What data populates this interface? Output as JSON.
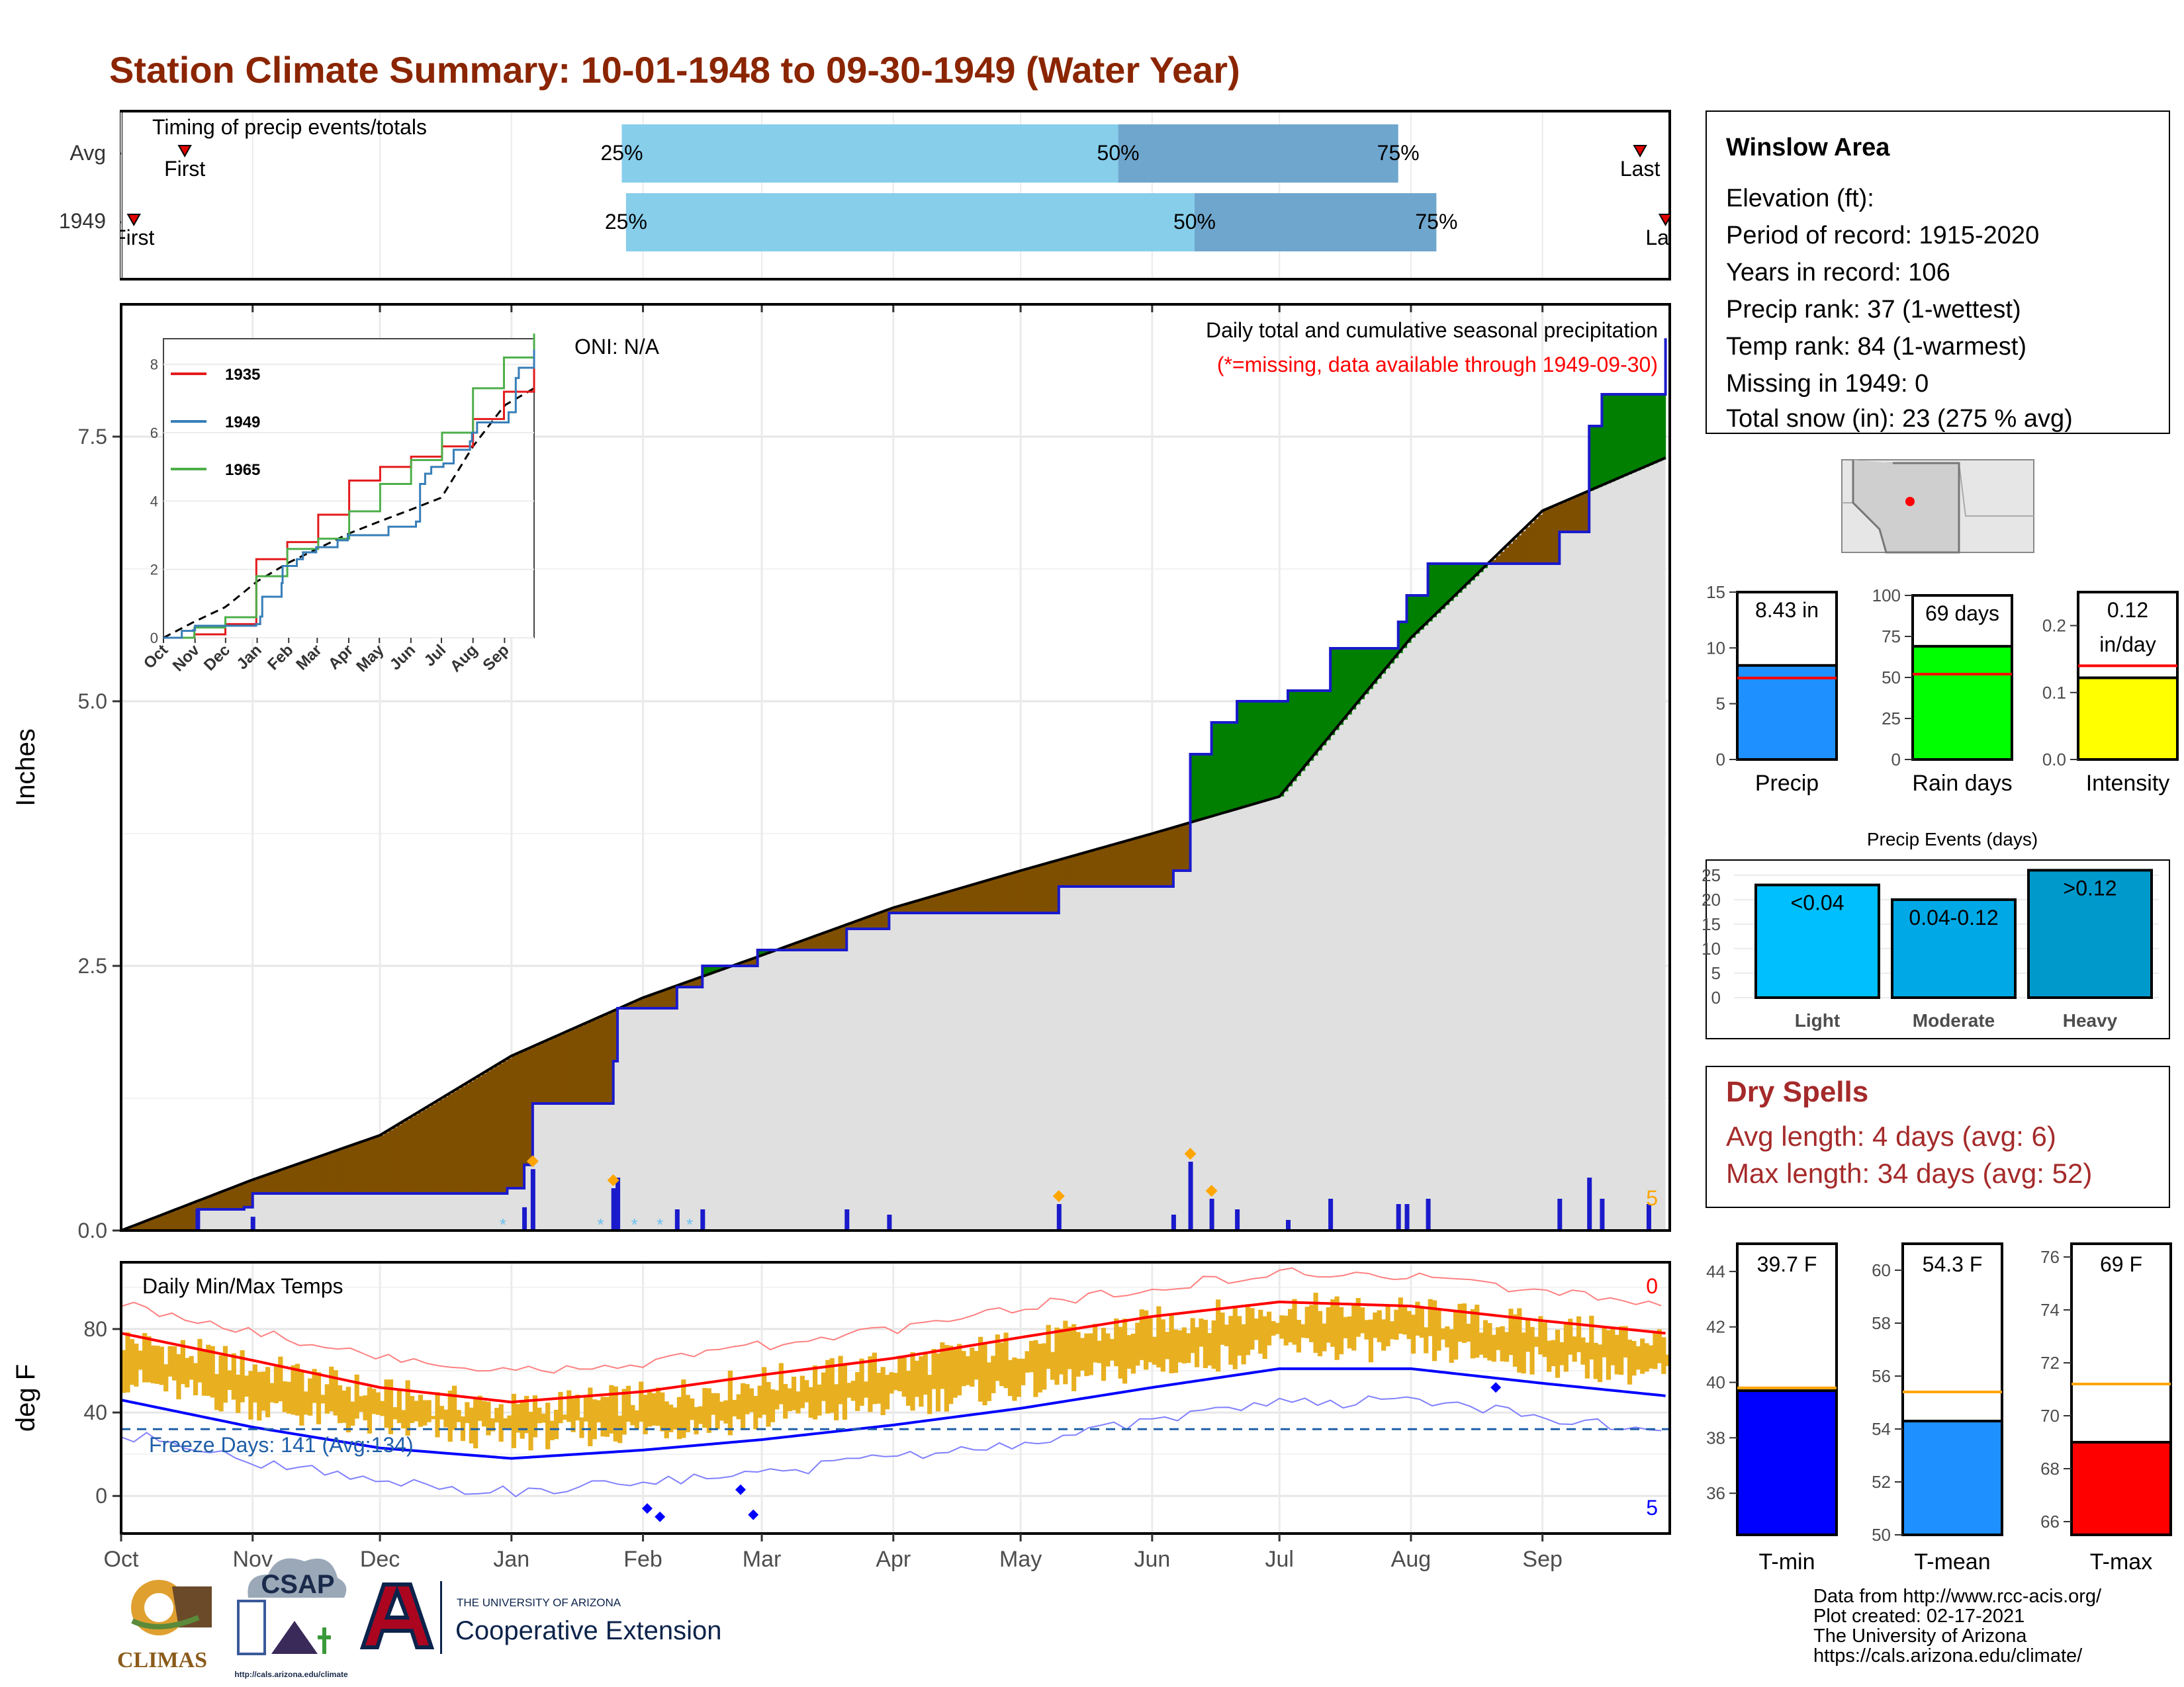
{
  "title": "Station Climate Summary: 10-01-1948 to 09-30-1949 (Water Year)",
  "colors": {
    "title": "#8b2500",
    "below_avg": "#7f4f00",
    "above_avg": "#007f00",
    "precip_blue": "#1a1acc",
    "timing_light": "#87ceeb",
    "timing_dark": "#6fa6cd",
    "tmax": "#ff0000",
    "tmin": "#0000ff",
    "temp_bar": "#e8b020",
    "freeze_line": "#1f5fa8",
    "dry_spell_text": "#a52a2a",
    "gray_fill": "#e0e0e0"
  },
  "timing": {
    "label": "Timing of precip events/totals",
    "rows": [
      {
        "name": "Avg",
        "first_label": "First",
        "last_label": "Last",
        "q25": "25%",
        "q50": "50%",
        "q75": "75%"
      },
      {
        "name": "1949",
        "first_label": "First",
        "last_label": "Last",
        "q25": "25%",
        "q50": "50%",
        "q75": "75%"
      }
    ],
    "avg_days": {
      "first": 15,
      "q25": 118,
      "q50": 235,
      "q75": 301,
      "last": 358
    },
    "yr_days": {
      "first": 3,
      "q25": 119,
      "q50": 253,
      "q75": 310,
      "last": 364
    }
  },
  "precip_panel": {
    "ylabel": "Inches",
    "oni": "ONI: N/A",
    "caption": "Daily total and cumulative seasonal precipitation",
    "missing_note": "(*=missing, data available through 1949-09-30)",
    "snow_count": "5",
    "ylim": [
      0,
      8.75
    ],
    "y_ticks": [
      "0.0",
      "2.5",
      "5.0",
      "7.5"
    ]
  },
  "inset": {
    "y_ticks": [
      "0",
      "2",
      "4",
      "6",
      "8"
    ],
    "x_ticks": [
      "Oct",
      "Nov",
      "Dec",
      "Jan",
      "Feb",
      "Mar",
      "Apr",
      "May",
      "Jun",
      "Jul",
      "Aug",
      "Sep"
    ],
    "legend": [
      {
        "name": "1935",
        "color": "#e41a1c"
      },
      {
        "name": "1949",
        "color": "#377eb8"
      },
      {
        "name": "1965",
        "color": "#4daf4a"
      }
    ]
  },
  "temp_panel": {
    "label": "Daily Min/Max Temps",
    "ylabel": "deg F",
    "freeze": "Freeze Days: 141 (Avg:134)",
    "top_count": "0",
    "bottom_count": "5",
    "y_ticks": [
      "0",
      "40",
      "80"
    ],
    "ylim": [
      -18,
      112
    ]
  },
  "months": [
    "Oct",
    "Nov",
    "Dec",
    "Jan",
    "Feb",
    "Mar",
    "Apr",
    "May",
    "Jun",
    "Jul",
    "Aug",
    "Sep"
  ],
  "info": {
    "station": "Winslow Area",
    "lines": [
      "Elevation (ft):",
      "Period of record: 1915-2020",
      "Years in record: 106",
      "Precip rank: 37 (1-wettest)",
      "Temp rank: 84 (1-warmest)",
      "Missing in 1949: 0",
      "Total snow (in): 23 (275 % avg)"
    ]
  },
  "summary_bars": {
    "precip": {
      "label": "Precip",
      "value_label": "8.43 in",
      "value": 8.43,
      "avg": 7.3,
      "ymax": 15,
      "ticks": [
        "0",
        "5",
        "10",
        "15"
      ],
      "color": "#1e90ff"
    },
    "raindays": {
      "label": "Rain days",
      "value_label": "69 days",
      "value": 69,
      "avg": 52,
      "ymax": 100,
      "ticks": [
        "0",
        "25",
        "50",
        "75",
        "100"
      ],
      "color": "#00ff00"
    },
    "intensity": {
      "label": "Intensity",
      "value_label_1": "0.12",
      "value_label_2": "in/day",
      "value": 0.122,
      "avg": 0.14,
      "ymax": 0.25,
      "ticks": [
        "0.0",
        "0.1",
        "0.2"
      ],
      "color": "#ffff00"
    }
  },
  "events": {
    "title": "Precip Events (days)",
    "ymax": 27,
    "ticks": [
      "0",
      "5",
      "10",
      "15",
      "20",
      "25"
    ],
    "bars": [
      {
        "category": "Light",
        "label": "<0.04",
        "value": 23,
        "color": "#00bfff"
      },
      {
        "category": "Moderate",
        "label": "0.04-0.12",
        "value": 20,
        "color": "#00a9e6"
      },
      {
        "category": "Heavy",
        "label": ">0.12",
        "value": 26,
        "color": "#0099cc"
      }
    ]
  },
  "dry_spells": {
    "title": "Dry Spells",
    "avg_line": "Avg length: 4 days (avg: 6)",
    "max_line": "Max length: 34 days (avg: 52)"
  },
  "temp_bars": {
    "tmin": {
      "label": "T-min",
      "value_label": "39.7 F",
      "value": 39.7,
      "avg": 39.8,
      "ymin": 34.5,
      "ymax": 45,
      "ticks": [
        "36",
        "38",
        "40",
        "42",
        "44"
      ],
      "color": "#0000ff"
    },
    "tmean": {
      "label": "T-mean",
      "value_label": "54.3 F",
      "value": 54.3,
      "avg": 55.4,
      "ymin": 50,
      "ymax": 61,
      "ticks": [
        "50",
        "52",
        "54",
        "56",
        "58",
        "60"
      ],
      "color": "#1e90ff"
    },
    "tmax": {
      "label": "T-max",
      "value_label": "69 F",
      "value": 69,
      "avg": 71.2,
      "ymin": 65.5,
      "ymax": 76.5,
      "ticks": [
        "66",
        "68",
        "70",
        "72",
        "74",
        "76"
      ],
      "color": "#ff0000"
    }
  },
  "footer": {
    "climas": "CLIMAS",
    "csap": "CSAP",
    "csap_url": "http://cals.arizona.edu/climate",
    "ua_small": "THE UNIVERSITY OF ARIZONA",
    "coop": "Cooperative Extension",
    "credits": [
      "Data from http://www.rcc-acis.org/",
      "Plot created: 02-17-2021",
      "The University of Arizona",
      "https://cals.arizona.edu/climate/"
    ]
  },
  "chart_data": {
    "type": "area",
    "title": "Station Climate Summary: 10-01-1948 to 09-30-1949 (Water Year)",
    "ylabel": "Inches",
    "ylim": [
      0,
      8.75
    ],
    "cumulative_1949": [
      {
        "date": "1948-10-01",
        "in": 0.0
      },
      {
        "date": "1948-10-18",
        "in": 0.0
      },
      {
        "date": "1948-10-19",
        "in": 0.2
      },
      {
        "date": "1948-10-30",
        "in": 0.22
      },
      {
        "date": "1948-11-01",
        "in": 0.35
      },
      {
        "date": "1948-12-31",
        "in": 0.4
      },
      {
        "date": "1949-01-04",
        "in": 0.62
      },
      {
        "date": "1949-01-06",
        "in": 1.2
      },
      {
        "date": "1949-01-25",
        "in": 1.6
      },
      {
        "date": "1949-01-26",
        "in": 2.1
      },
      {
        "date": "1949-02-09",
        "in": 2.3
      },
      {
        "date": "1949-02-15",
        "in": 2.5
      },
      {
        "date": "1949-02-28",
        "in": 2.65
      },
      {
        "date": "1949-03-21",
        "in": 2.85
      },
      {
        "date": "1949-03-31",
        "in": 3.0
      },
      {
        "date": "1949-04-20",
        "in": 3.0
      },
      {
        "date": "1949-05-10",
        "in": 3.25
      },
      {
        "date": "1949-06-06",
        "in": 3.4
      },
      {
        "date": "1949-06-10",
        "in": 4.5
      },
      {
        "date": "1949-06-15",
        "in": 4.8
      },
      {
        "date": "1949-06-21",
        "in": 5.0
      },
      {
        "date": "1949-07-03",
        "in": 5.1
      },
      {
        "date": "1949-07-13",
        "in": 5.5
      },
      {
        "date": "1949-07-29",
        "in": 5.75
      },
      {
        "date": "1949-07-31",
        "in": 6.0
      },
      {
        "date": "1949-08-05",
        "in": 6.3
      },
      {
        "date": "1949-08-31",
        "in": 6.3
      },
      {
        "date": "1949-09-05",
        "in": 6.6
      },
      {
        "date": "1949-09-12",
        "in": 7.6
      },
      {
        "date": "1949-09-15",
        "in": 7.9
      },
      {
        "date": "1949-09-30",
        "in": 8.43
      }
    ],
    "cumulative_average": [
      {
        "date": "1948-10-01",
        "in": 0.0
      },
      {
        "date": "1948-11-01",
        "in": 0.48
      },
      {
        "date": "1948-12-01",
        "in": 0.9
      },
      {
        "date": "1949-01-01",
        "in": 1.65
      },
      {
        "date": "1949-02-01",
        "in": 2.2
      },
      {
        "date": "1949-03-01",
        "in": 2.6
      },
      {
        "date": "1949-04-01",
        "in": 3.05
      },
      {
        "date": "1949-05-01",
        "in": 3.4
      },
      {
        "date": "1949-06-01",
        "in": 3.75
      },
      {
        "date": "1949-07-01",
        "in": 4.1
      },
      {
        "date": "1949-08-01",
        "in": 5.6
      },
      {
        "date": "1949-09-01",
        "in": 6.8
      },
      {
        "date": "1949-09-30",
        "in": 7.3
      }
    ],
    "daily_precip_1949": [
      {
        "date": "1948-10-19",
        "in": 0.2
      },
      {
        "date": "1948-11-01",
        "in": 0.13
      },
      {
        "date": "1949-01-04",
        "in": 0.22
      },
      {
        "date": "1949-01-06",
        "in": 0.58
      },
      {
        "date": "1949-01-25",
        "in": 0.4
      },
      {
        "date": "1949-01-26",
        "in": 0.5
      },
      {
        "date": "1949-02-09",
        "in": 0.2
      },
      {
        "date": "1949-02-15",
        "in": 0.2
      },
      {
        "date": "1949-03-21",
        "in": 0.2
      },
      {
        "date": "1949-03-31",
        "in": 0.15
      },
      {
        "date": "1949-05-10",
        "in": 0.25
      },
      {
        "date": "1949-06-06",
        "in": 0.15
      },
      {
        "date": "1949-06-10",
        "in": 0.65
      },
      {
        "date": "1949-06-15",
        "in": 0.3
      },
      {
        "date": "1949-06-21",
        "in": 0.2
      },
      {
        "date": "1949-07-03",
        "in": 0.1
      },
      {
        "date": "1949-07-13",
        "in": 0.3
      },
      {
        "date": "1949-07-29",
        "in": 0.25
      },
      {
        "date": "1949-07-31",
        "in": 0.25
      },
      {
        "date": "1949-08-05",
        "in": 0.3
      },
      {
        "date": "1949-09-05",
        "in": 0.3
      },
      {
        "date": "1949-09-12",
        "in": 0.5
      },
      {
        "date": "1949-09-15",
        "in": 0.3
      },
      {
        "date": "1949-09-26",
        "in": 0.25
      }
    ],
    "temps": {
      "ylabel": "deg F",
      "ylim": [
        -18,
        112
      ],
      "avg_max": [
        {
          "date": "1948-10-01",
          "f": 78
        },
        {
          "date": "1948-11-01",
          "f": 65
        },
        {
          "date": "1948-12-01",
          "f": 52
        },
        {
          "date": "1949-01-01",
          "f": 45
        },
        {
          "date": "1949-02-01",
          "f": 50
        },
        {
          "date": "1949-03-01",
          "f": 58
        },
        {
          "date": "1949-04-01",
          "f": 66
        },
        {
          "date": "1949-05-01",
          "f": 76
        },
        {
          "date": "1949-06-01",
          "f": 86
        },
        {
          "date": "1949-07-01",
          "f": 93
        },
        {
          "date": "1949-08-01",
          "f": 91
        },
        {
          "date": "1949-09-01",
          "f": 84
        },
        {
          "date": "1949-09-30",
          "f": 78
        }
      ],
      "avg_min": [
        {
          "date": "1948-10-01",
          "f": 46
        },
        {
          "date": "1948-11-01",
          "f": 33
        },
        {
          "date": "1948-12-01",
          "f": 23
        },
        {
          "date": "1949-01-01",
          "f": 18
        },
        {
          "date": "1949-02-01",
          "f": 22
        },
        {
          "date": "1949-03-01",
          "f": 27
        },
        {
          "date": "1949-04-01",
          "f": 34
        },
        {
          "date": "1949-05-01",
          "f": 42
        },
        {
          "date": "1949-06-01",
          "f": 52
        },
        {
          "date": "1949-07-01",
          "f": 61
        },
        {
          "date": "1949-08-01",
          "f": 61
        },
        {
          "date": "1949-09-01",
          "f": 54
        },
        {
          "date": "1949-09-30",
          "f": 48
        }
      ]
    }
  }
}
